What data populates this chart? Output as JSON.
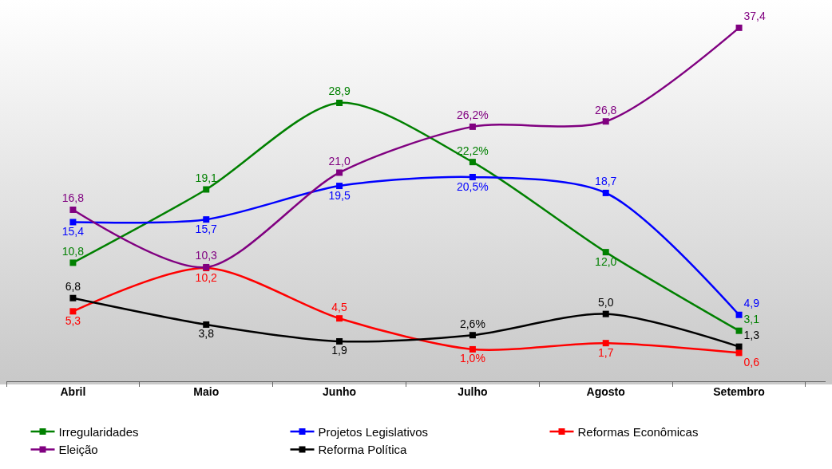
{
  "chart_data": {
    "type": "line",
    "categories": [
      "Abril",
      "Maio",
      "Junho",
      "Julho",
      "Agosto",
      "Setembro"
    ],
    "series": [
      {
        "name": "Irregularidades",
        "color": "#008000",
        "values": [
          10.8,
          19.1,
          28.9,
          22.2,
          12.0,
          3.1
        ],
        "value_labels": [
          "10,8",
          "19,1",
          "28,9",
          "22,2%",
          "12,0",
          "3,1"
        ]
      },
      {
        "name": "Projetos Legislativos",
        "color": "#0000ff",
        "values": [
          15.4,
          15.7,
          19.5,
          20.5,
          18.7,
          4.9
        ],
        "value_labels": [
          "15,4",
          "15,7",
          "19,5",
          "20,5%",
          "18,7",
          "4,9"
        ]
      },
      {
        "name": "Reformas Econômicas",
        "color": "#ff0000",
        "values": [
          5.3,
          10.2,
          4.5,
          1.0,
          1.7,
          0.6
        ],
        "value_labels": [
          "5,3",
          "10,2",
          "4,5",
          "1,0%",
          "1,7",
          "0,6"
        ]
      },
      {
        "name": "Eleição",
        "color": "#800080",
        "values": [
          16.8,
          10.3,
          21.0,
          26.2,
          26.8,
          37.4
        ],
        "value_labels": [
          "16,8",
          "10,3",
          "21,0",
          "26,2%",
          "26,8",
          "37,4"
        ]
      },
      {
        "name": "Reforma Política",
        "color": "#000000",
        "values": [
          6.8,
          3.8,
          1.9,
          2.6,
          5.0,
          1.3
        ],
        "value_labels": [
          "6,8",
          "3,8",
          "1,9",
          "2,6%",
          "5,0",
          "1,3"
        ]
      }
    ],
    "marker": "square",
    "line_style": "solid",
    "grid": false,
    "legend": "bottom"
  }
}
